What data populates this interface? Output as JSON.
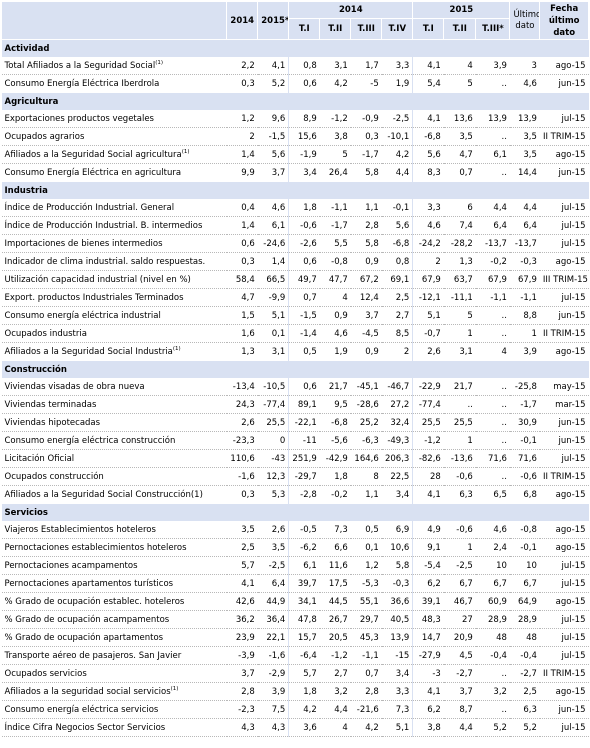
{
  "header": {
    "y2014": "2014",
    "y2015": "2015*",
    "quarters_2014_label": "2014",
    "quarters_2015_label": "2015",
    "q2014": [
      "T.I",
      "T.II",
      "T.III",
      "T.IV"
    ],
    "q2015": [
      "T.I",
      "T.II",
      "T.III*"
    ],
    "ultimo_dato": "Último dato",
    "fecha_ultimo_dato": "Fecha último dato"
  },
  "sections": [
    {
      "name": "Actividad",
      "rows": [
        {
          "label": "Total Afiliados a la Seguridad Social",
          "note": "(1)",
          "v": [
            "2,2",
            "4,1",
            "0,8",
            "3,1",
            "1,7",
            "3,3",
            "4,1",
            "4",
            "3,9",
            "3",
            "ago-15"
          ]
        },
        {
          "label": "Consumo Energía Eléctrica Iberdrola",
          "note": "",
          "v": [
            "0,3",
            "5,2",
            "0,6",
            "4,2",
            "-5",
            "1,9",
            "5,4",
            "5",
            "..",
            "4,6",
            "jun-15"
          ]
        }
      ]
    },
    {
      "name": "Agricultura",
      "rows": [
        {
          "label": "Exportaciones productos vegetales",
          "note": "",
          "v": [
            "1,2",
            "9,6",
            "8,9",
            "-1,2",
            "-0,9",
            "-2,5",
            "4,1",
            "13,6",
            "13,9",
            "13,9",
            "jul-15"
          ]
        },
        {
          "label": "Ocupados agrarios",
          "note": "",
          "v": [
            "2",
            "-1,5",
            "15,6",
            "3,8",
            "0,3",
            "-10,1",
            "-6,8",
            "3,5",
            "..",
            "3,5",
            "II TRIM-15"
          ]
        },
        {
          "label": "Afiliados a la Seguridad Social agricultura",
          "note": "(1)",
          "v": [
            "1,4",
            "5,6",
            "-1,9",
            "5",
            "-1,7",
            "4,2",
            "5,6",
            "4,7",
            "6,1",
            "3,5",
            "ago-15"
          ]
        },
        {
          "label": "Consumo Energía Eléctrica en agricultura",
          "note": "",
          "v": [
            "9,9",
            "3,7",
            "3,4",
            "26,4",
            "5,8",
            "4,4",
            "8,3",
            "0,7",
            "..",
            "14,4",
            "jun-15"
          ]
        }
      ]
    },
    {
      "name": "Industria",
      "rows": [
        {
          "label": "Índice de Producción Industrial. General",
          "note": "",
          "v": [
            "0,4",
            "4,6",
            "1,8",
            "-1,1",
            "1,1",
            "-0,1",
            "3,3",
            "6",
            "4,4",
            "4,4",
            "jul-15"
          ]
        },
        {
          "label": "Índice de Producción Industrial. B. intermedios",
          "note": "",
          "v": [
            "1,4",
            "6,1",
            "-0,6",
            "-1,7",
            "2,8",
            "5,6",
            "4,6",
            "7,4",
            "6,4",
            "6,4",
            "jul-15"
          ]
        },
        {
          "label": "Importaciones de bienes intermedios",
          "note": "",
          "v": [
            "0,6",
            "-24,6",
            "-2,6",
            "5,5",
            "5,8",
            "-6,8",
            "-24,2",
            "-28,2",
            "-13,7",
            "-13,7",
            "jul-15"
          ]
        },
        {
          "label": "Indicador de clima industrial. saldo respuestas.",
          "note": "",
          "v": [
            "0,3",
            "1,4",
            "0,6",
            "-0,8",
            "0,9",
            "0,8",
            "2",
            "1,3",
            "-0,2",
            "-0,3",
            "ago-15"
          ]
        },
        {
          "label": "Utilización capacidad industrial (nivel en %)",
          "note": "",
          "v": [
            "58,4",
            "66,5",
            "49,7",
            "47,7",
            "67,2",
            "69,1",
            "67,9",
            "63,7",
            "67,9",
            "67,9",
            "III TRIM-15"
          ]
        },
        {
          "label": "Export. productos Industriales Terminados",
          "note": "",
          "v": [
            "4,7",
            "-9,9",
            "0,7",
            "4",
            "12,4",
            "2,5",
            "-12,1",
            "-11,1",
            "-1,1",
            "-1,1",
            "jul-15"
          ]
        },
        {
          "label": "Consumo energía eléctrica industrial",
          "note": "",
          "v": [
            "1,5",
            "5,1",
            "-1,5",
            "0,9",
            "3,7",
            "2,7",
            "5,1",
            "5",
            "..",
            "8,8",
            "jun-15"
          ]
        },
        {
          "label": "Ocupados industria",
          "note": "",
          "v": [
            "1,6",
            "0,1",
            "-1,4",
            "4,6",
            "-4,5",
            "8,5",
            "-0,7",
            "1",
            "..",
            "1",
            "II TRIM-15"
          ]
        },
        {
          "label": "Afiliados a la Seguridad Social Industria",
          "note": "(1)",
          "v": [
            "1,3",
            "3,1",
            "0,5",
            "1,9",
            "0,9",
            "2",
            "2,6",
            "3,1",
            "4",
            "3,9",
            "ago-15"
          ]
        }
      ]
    },
    {
      "name": "Construcción",
      "rows": [
        {
          "label": "Viviendas visadas de obra nueva",
          "note": "",
          "v": [
            "-13,4",
            "-10,5",
            "0,6",
            "21,7",
            "-45,1",
            "-46,7",
            "-22,9",
            "21,7",
            "..",
            "-25,8",
            "may-15"
          ]
        },
        {
          "label": "Viviendas terminadas",
          "note": "",
          "v": [
            "24,3",
            "-77,4",
            "89,1",
            "9,5",
            "-28,6",
            "27,2",
            "-77,4",
            "..",
            "..",
            "-1,7",
            "mar-15"
          ]
        },
        {
          "label": "Viviendas hipotecadas",
          "note": "",
          "v": [
            "2,6",
            "25,5",
            "-22,1",
            "-6,8",
            "25,2",
            "32,4",
            "25,5",
            "25,5",
            "..",
            "30,9",
            "jun-15"
          ]
        },
        {
          "label": "Consumo energía eléctrica construcción",
          "note": "",
          "v": [
            "-23,3",
            "0",
            "-11",
            "-5,6",
            "-6,3",
            "-49,3",
            "-1,2",
            "1",
            "..",
            "-0,1",
            "jun-15"
          ]
        },
        {
          "label": "Licitación Oficial",
          "note": "",
          "v": [
            "110,6",
            "-43",
            "251,9",
            "-42,9",
            "164,6",
            "206,3",
            "-82,6",
            "-13,6",
            "71,6",
            "71,6",
            "jul-15"
          ]
        },
        {
          "label": "Ocupados construcción",
          "note": "",
          "v": [
            "-1,6",
            "12,3",
            "-29,7",
            "1,8",
            "8",
            "22,5",
            "28",
            "-0,6",
            "..",
            "-0,6",
            "II TRIM-15"
          ]
        },
        {
          "label": "Afiliados a la Seguridad Social Construcción(1)",
          "note": "",
          "v": [
            "0,3",
            "5,3",
            "-2,8",
            "-0,2",
            "1,1",
            "3,4",
            "4,1",
            "6,3",
            "6,5",
            "6,8",
            "ago-15"
          ]
        }
      ]
    },
    {
      "name": "Servicios",
      "rows": [
        {
          "label": "Viajeros Establecimientos hoteleros",
          "note": "",
          "v": [
            "3,5",
            "2,6",
            "-0,5",
            "7,3",
            "0,5",
            "6,9",
            "4,9",
            "-0,6",
            "4,6",
            "-0,8",
            "ago-15"
          ]
        },
        {
          "label": "Pernoctaciones establecimientos hoteleros",
          "note": "",
          "v": [
            "2,5",
            "3,5",
            "-6,2",
            "6,6",
            "0,1",
            "10,6",
            "9,1",
            "1",
            "2,4",
            "-0,1",
            "ago-15"
          ]
        },
        {
          "label": "Pernoctaciones acampamentos",
          "note": "",
          "v": [
            "5,7",
            "-2,5",
            "6,1",
            "11,6",
            "1,2",
            "5,8",
            "-5,4",
            "-2,5",
            "10",
            "10",
            "jul-15"
          ]
        },
        {
          "label": "Pernoctaciones apartamentos turísticos",
          "note": "",
          "v": [
            "4,1",
            "6,4",
            "39,7",
            "17,5",
            "-5,3",
            "-0,3",
            "6,2",
            "6,7",
            "6,7",
            "6,7",
            "jul-15"
          ]
        },
        {
          "label": "% Grado de ocupación establec. hoteleros",
          "note": "",
          "v": [
            "42,6",
            "44,9",
            "34,1",
            "44,5",
            "55,1",
            "36,6",
            "39,1",
            "46,7",
            "60,9",
            "64,9",
            "ago-15"
          ]
        },
        {
          "label": "% Grado de ocupación acampamentos",
          "note": "",
          "v": [
            "36,2",
            "36,4",
            "47,8",
            "26,7",
            "29,7",
            "40,5",
            "48,3",
            "27",
            "28,9",
            "28,9",
            "jul-15"
          ]
        },
        {
          "label": "% Grado de ocupación apartamentos",
          "note": "",
          "v": [
            "23,9",
            "22,1",
            "15,7",
            "20,5",
            "45,3",
            "13,9",
            "14,7",
            "20,9",
            "48",
            "48",
            "jul-15"
          ]
        },
        {
          "label": "Transporte aéreo de pasajeros. San Javier",
          "note": "",
          "v": [
            "-3,9",
            "-1,6",
            "-6,4",
            "-1,2",
            "-1,1",
            "-15",
            "-27,9",
            "4,5",
            "-0,4",
            "-0,4",
            "jul-15"
          ]
        },
        {
          "label": "Ocupados servicios",
          "note": "",
          "v": [
            "3,7",
            "-2,9",
            "5,7",
            "2,7",
            "0,7",
            "3,4",
            "-3",
            "-2,7",
            "..",
            "-2,7",
            "II TRIM-15"
          ]
        },
        {
          "label": "Afiliados a la seguridad social servicios",
          "note": "(1)",
          "v": [
            "2,8",
            "3,9",
            "1,8",
            "3,2",
            "2,8",
            "3,3",
            "4,1",
            "3,7",
            "3,2",
            "2,5",
            "ago-15"
          ]
        },
        {
          "label": "Consumo energía eléctrica servicios",
          "note": "",
          "v": [
            "-2,3",
            "7,5",
            "4,2",
            "4,4",
            "-21,6",
            "7,3",
            "6,2",
            "8,7",
            "..",
            "6,3",
            "jun-15"
          ]
        },
        {
          "label": "Índice Cifra Negocios Sector Servicios",
          "note": "",
          "v": [
            "4,3",
            "4,3",
            "3,6",
            "4",
            "4,2",
            "5,1",
            "3,8",
            "4,4",
            "5,2",
            "5,2",
            "jul-15"
          ]
        }
      ]
    }
  ]
}
